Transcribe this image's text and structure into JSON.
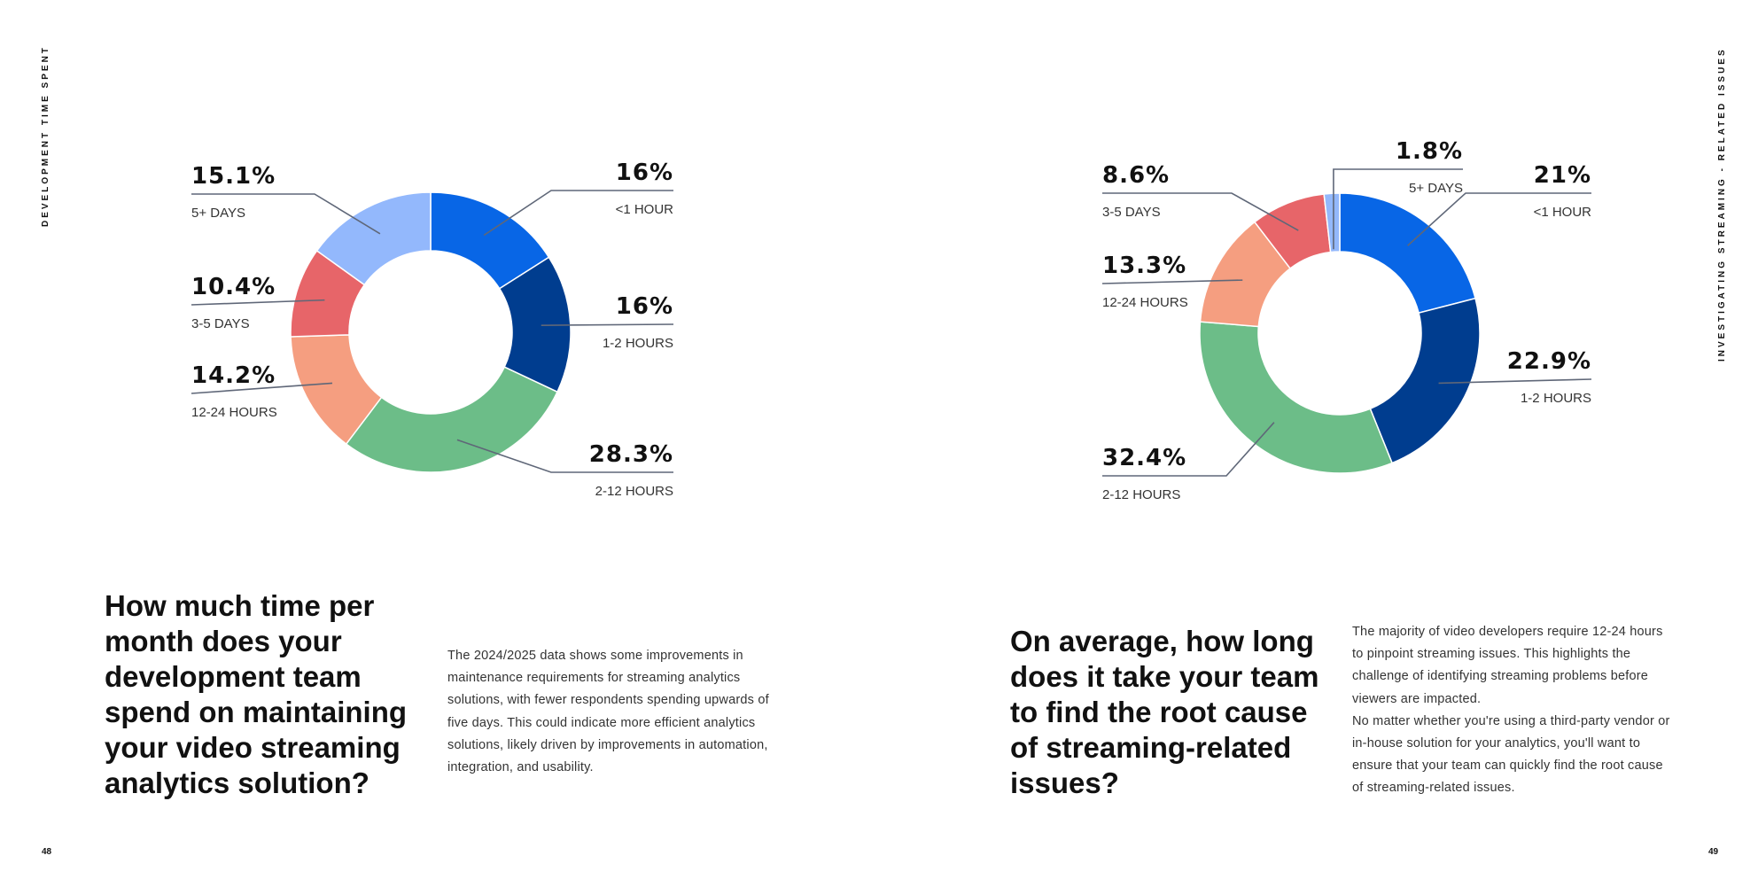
{
  "left_page": {
    "section_label": "DEVELOPMENT TIME SPENT",
    "page_number": "48",
    "question": "How much time per month does your development team spend on maintaining your video streaming analytics solution?",
    "body": "The 2024/2025 data shows some improvements in maintenance requirements for streaming analytics solutions, with fewer respondents spending upwards of five days. This could indicate more efficient analytics solutions, likely driven by improvements in automation, integration, and usability."
  },
  "right_page": {
    "section_label": "INVESTIGATING STREAMING - RELATED ISSUES",
    "page_number": "49",
    "question": "On average, how long does it take your team to find the root cause of streaming-related issues?",
    "body_paragraphs": [
      "The majority of video developers require 12-24 hours to pinpoint streaming issues. This highlights the challenge of identifying streaming problems before viewers are impacted.",
      "No matter whether you're using a third-party vendor or in-house solution for your analytics, you'll want to ensure that your team can quickly find the root cause of streaming-related issues."
    ]
  },
  "chart_data": [
    {
      "type": "pie",
      "donut": true,
      "title": "",
      "slices": [
        {
          "label": "<1 HOUR",
          "value": 16,
          "display": "16%",
          "color": "#0866e6"
        },
        {
          "label": "1-2 HOURS",
          "value": 16,
          "display": "16%",
          "color": "#003d8f"
        },
        {
          "label": "2-12 HOURS",
          "value": 28.3,
          "display": "28.3%",
          "color": "#6cbd88"
        },
        {
          "label": "12-24 HOURS",
          "value": 14.2,
          "display": "14.2%",
          "color": "#f59e80"
        },
        {
          "label": "3-5 DAYS",
          "value": 10.4,
          "display": "10.4%",
          "color": "#e76569"
        },
        {
          "label": "5+ DAYS",
          "value": 15.1,
          "display": "15.1%",
          "color": "#93b8fc"
        }
      ]
    },
    {
      "type": "pie",
      "donut": true,
      "title": "",
      "slices": [
        {
          "label": "<1 HOUR",
          "value": 21,
          "display": "21%",
          "color": "#0866e6"
        },
        {
          "label": "1-2 HOURS",
          "value": 22.9,
          "display": "22.9%",
          "color": "#003d8f"
        },
        {
          "label": "2-12 HOURS",
          "value": 32.4,
          "display": "32.4%",
          "color": "#6cbd88"
        },
        {
          "label": "12-24 HOURS",
          "value": 13.3,
          "display": "13.3%",
          "color": "#f59e80"
        },
        {
          "label": "3-5 DAYS",
          "value": 8.6,
          "display": "8.6%",
          "color": "#e76569"
        },
        {
          "label": "5+ DAYS",
          "value": 1.8,
          "display": "1.8%",
          "color": "#93b8fc"
        }
      ]
    }
  ]
}
